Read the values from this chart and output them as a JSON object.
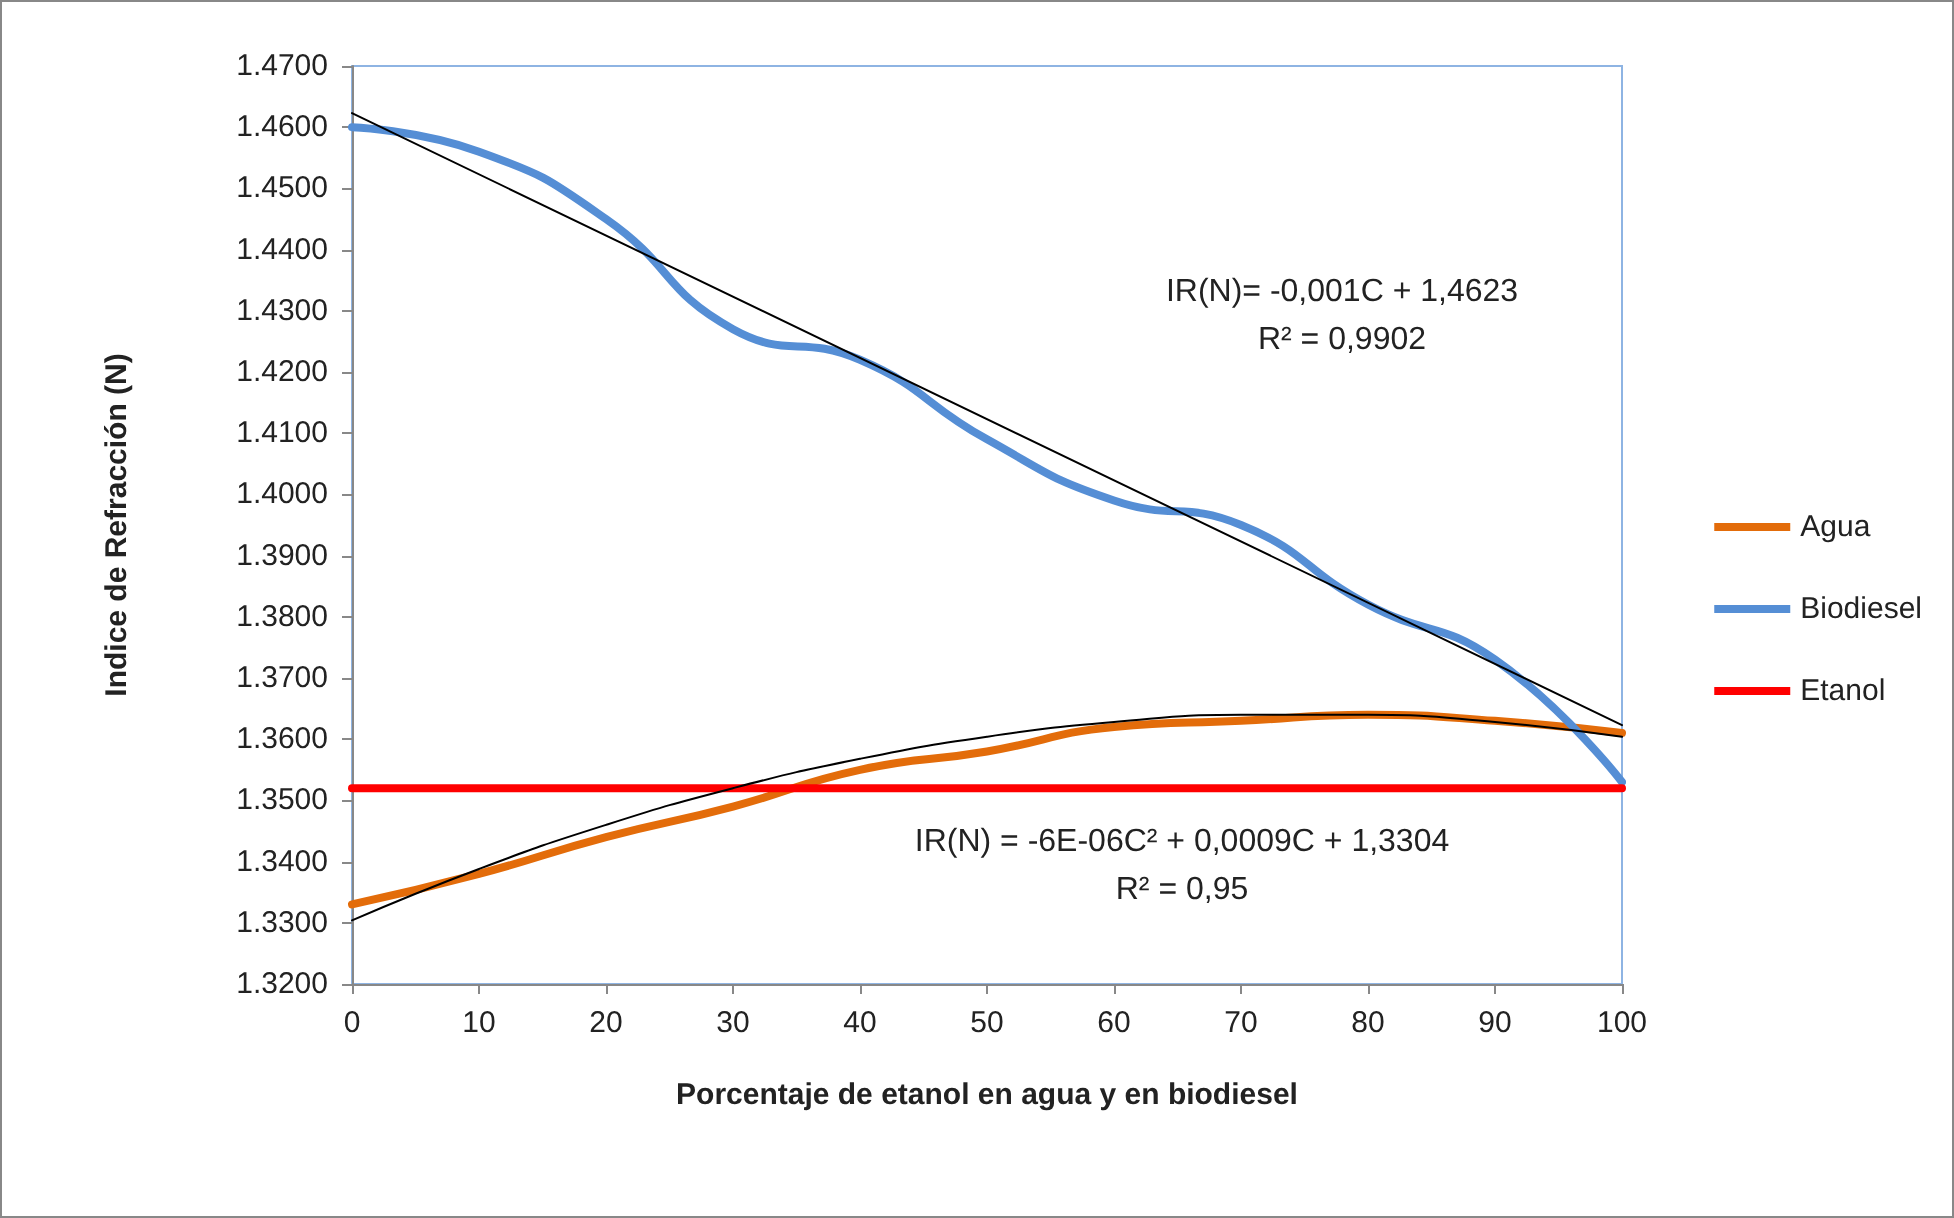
{
  "chart_data": {
    "type": "line",
    "xlabel": "Porcentaje de etanol en agua y en biodiesel",
    "ylabel": "Indice de Refracción (N)",
    "x": [
      0,
      10,
      20,
      30,
      40,
      50,
      60,
      70,
      80,
      90,
      100
    ],
    "series": [
      {
        "name": "Agua",
        "color": "#e36c0a",
        "values": [
          1.333,
          1.338,
          1.344,
          1.349,
          1.355,
          1.358,
          1.362,
          1.363,
          1.364,
          1.363,
          1.361
        ]
      },
      {
        "name": "Biodiesel",
        "color": "#558ed5",
        "values": [
          1.46,
          1.456,
          1.445,
          1.427,
          1.422,
          1.409,
          1.399,
          1.395,
          1.382,
          1.373,
          1.353
        ]
      },
      {
        "name": "Etanol",
        "color": "#ff0000",
        "x": [
          0,
          100
        ],
        "values": [
          1.352,
          1.352
        ]
      },
      {
        "type": "line",
        "color": "#000000",
        "x": [
          0,
          100
        ],
        "values": [
          1.4623,
          1.3623
        ]
      },
      {
        "type": "line",
        "color": "#000000",
        "x": [
          0,
          10,
          20,
          30,
          40,
          50,
          60,
          70,
          80,
          90,
          100
        ],
        "values": [
          1.3304,
          1.3388,
          1.346,
          1.352,
          1.3568,
          1.3604,
          1.3628,
          1.364,
          1.364,
          1.3628,
          1.3604
        ]
      }
    ],
    "xlim": [
      0,
      100
    ],
    "xticks": [
      0,
      10,
      20,
      30,
      40,
      50,
      60,
      70,
      80,
      90,
      100
    ],
    "ylim": [
      1.32,
      1.47
    ],
    "yticks": [
      {
        "value": 1.32,
        "label": "1.3200"
      },
      {
        "value": 1.33,
        "label": "1.3300"
      },
      {
        "value": 1.34,
        "label": "1.3400"
      },
      {
        "value": 1.35,
        "label": "1.3500"
      },
      {
        "value": 1.36,
        "label": "1.3600"
      },
      {
        "value": 1.37,
        "label": "1.3700"
      },
      {
        "value": 1.38,
        "label": "1.3800"
      },
      {
        "value": 1.39,
        "label": "1.3900"
      },
      {
        "value": 1.4,
        "label": "1.4000"
      },
      {
        "value": 1.41,
        "label": "1.4100"
      },
      {
        "value": 1.42,
        "label": "1.4200"
      },
      {
        "value": 1.43,
        "label": "1.4300"
      },
      {
        "value": 1.44,
        "label": "1.4400"
      },
      {
        "value": 1.45,
        "label": "1.4500"
      },
      {
        "value": 1.46,
        "label": "1.4600"
      },
      {
        "value": 1.47,
        "label": "1.4700"
      }
    ],
    "annotations": [
      "IR(N)= -0,001C + 1,4623\nR² = 0,9902",
      "IR(N) = -6E-06C² + 0,0009C + 1,3304\nR² = 0,95"
    ],
    "grid": false,
    "legend": "right",
    "marker": "none",
    "line_style": "solid"
  }
}
